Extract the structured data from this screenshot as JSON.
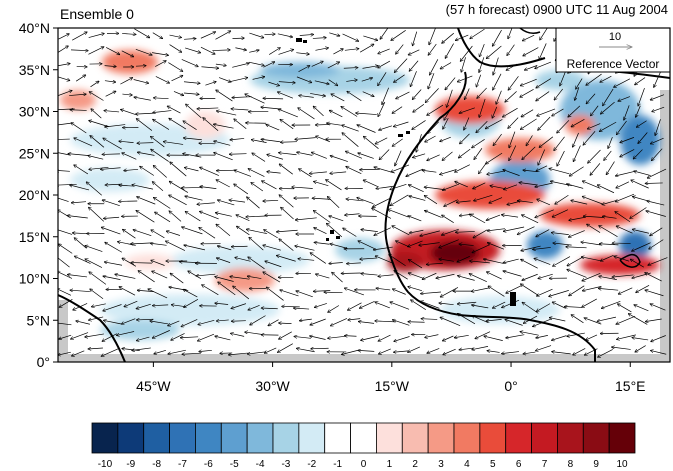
{
  "header": {
    "left": "Ensemble 0",
    "right": "(57 h forecast) 0900 UTC 11 Aug 2004"
  },
  "map": {
    "lat_ticks": [
      {
        "value": 0,
        "label": "0°"
      },
      {
        "value": 5,
        "label": "5°N"
      },
      {
        "value": 10,
        "label": "10°N"
      },
      {
        "value": 15,
        "label": "15°N"
      },
      {
        "value": 20,
        "label": "20°N"
      },
      {
        "value": 25,
        "label": "25°N"
      },
      {
        "value": 30,
        "label": "30°N"
      },
      {
        "value": 35,
        "label": "35°N"
      },
      {
        "value": 40,
        "label": "40°N"
      }
    ],
    "lon_ticks": [
      {
        "value": -45,
        "label": "45°W"
      },
      {
        "value": -30,
        "label": "30°W"
      },
      {
        "value": -15,
        "label": "15°W"
      },
      {
        "value": 0,
        "label": "0°"
      },
      {
        "value": 15,
        "label": "15°E"
      }
    ],
    "lon_range": [
      -57,
      20
    ],
    "lat_range": [
      0,
      40
    ],
    "reference_vector": {
      "magnitude": "10",
      "label": "Reference Vector"
    },
    "colors": {
      "land_outline": "#000000",
      "missing": "#c8c8c8"
    }
  },
  "colorbar": {
    "labels": [
      "-10",
      "-9",
      "-8",
      "-7",
      "-6",
      "-5",
      "-4",
      "-3",
      "-2",
      "-1",
      "0",
      "1",
      "2",
      "3",
      "4",
      "5",
      "6",
      "7",
      "8",
      "9",
      "10"
    ],
    "colors": [
      "#08244e",
      "#0d3a78",
      "#1f5fa2",
      "#2f72b5",
      "#3f86c2",
      "#5e9fd0",
      "#7fb8db",
      "#a7d3e6",
      "#d3ebf5",
      "#ffffff",
      "#ffffff",
      "#fde0dc",
      "#f8bcb0",
      "#f59a86",
      "#f17a62",
      "#e94c3a",
      "#d6262a",
      "#c41a22",
      "#a8141c",
      "#8a0c14",
      "#650008"
    ]
  }
}
